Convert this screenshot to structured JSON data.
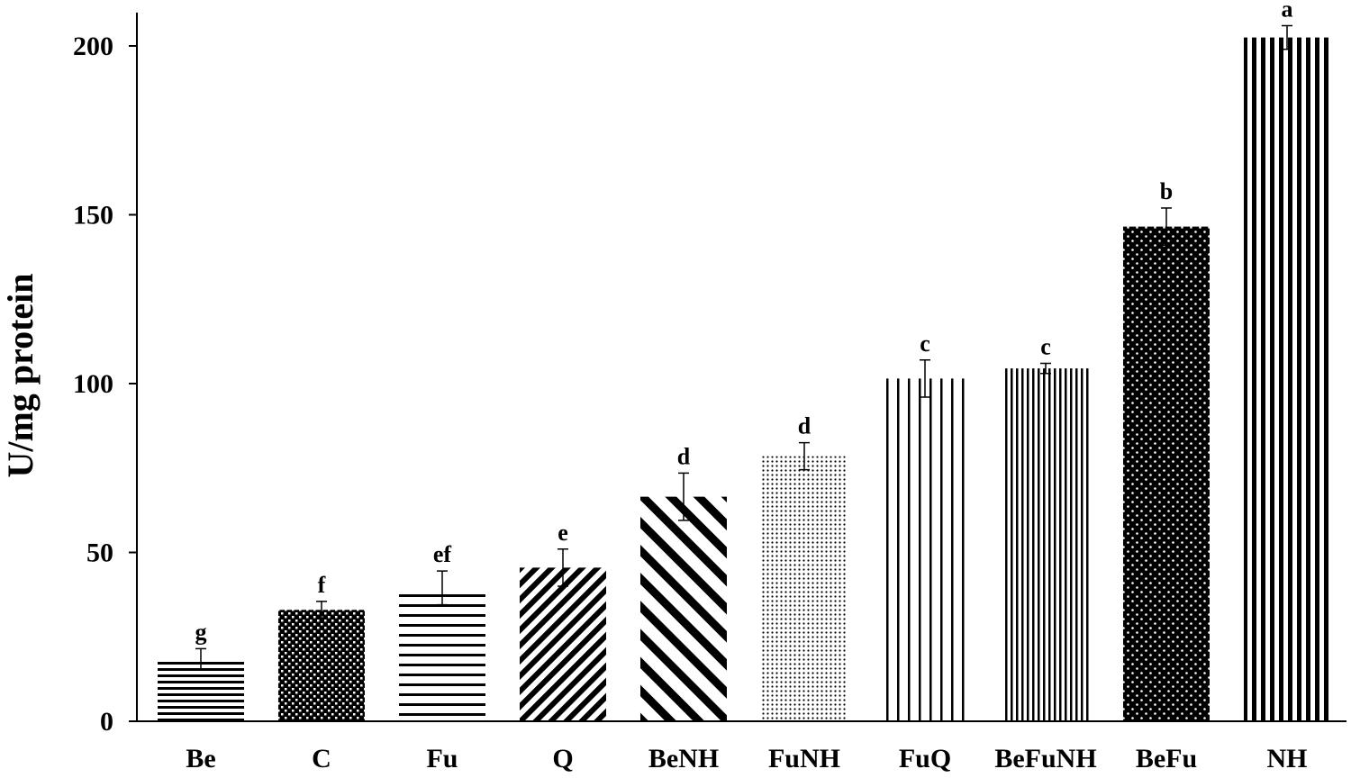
{
  "chart_data": {
    "type": "bar",
    "title": "",
    "xlabel": "",
    "ylabel": "U/mg protein",
    "ylim": [
      0,
      210
    ],
    "yticks": [
      0,
      50,
      100,
      150,
      200
    ],
    "grid": false,
    "categories": [
      "Be",
      "C",
      "Fu",
      "Q",
      "BeNH",
      "FuNH",
      "FuQ",
      "BeFuNH",
      "BeFu",
      "NH"
    ],
    "values": [
      18.5,
      33,
      39.5,
      45.5,
      66.5,
      78.5,
      101.5,
      104.5,
      146.5,
      202.5
    ],
    "errors": [
      3,
      2.5,
      5,
      5.5,
      7,
      4,
      5.5,
      1.5,
      5.5,
      3.5
    ],
    "significance_letters": [
      "g",
      "f",
      "ef",
      "e",
      "d",
      "d",
      "c",
      "c",
      "b",
      "a"
    ],
    "fill_patterns": [
      "hlines",
      "checker",
      "hlines-wide",
      "diag-right",
      "diag-right-wide",
      "dots-fine",
      "vlines-wide",
      "vlines",
      "dots-dense",
      "vlines-bold"
    ]
  }
}
